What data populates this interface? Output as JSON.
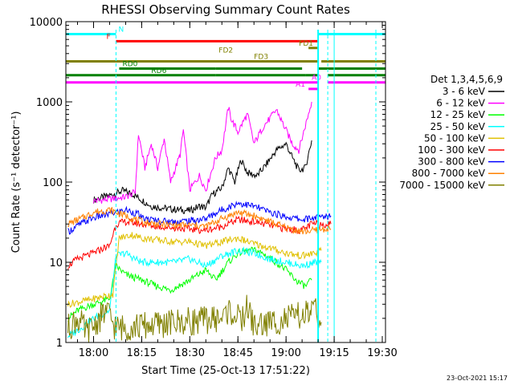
{
  "chart_data": {
    "type": "line",
    "title": "RHESSI Observing Summary Count Rates",
    "xlabel": "Start Time (25-Oct-13 17:51:22)",
    "ylabel": "Count Rate (s⁻¹ detector⁻¹)",
    "y_scale": "log",
    "ylim": [
      1,
      10000
    ],
    "xlim": [
      "17:51:22",
      "19:31:00"
    ],
    "x_ticks": [
      "18:00",
      "18:15",
      "18:30",
      "18:45",
      "19:00",
      "19:15",
      "19:30"
    ],
    "y_ticks": [
      "1",
      "10",
      "100",
      "1000",
      "10000"
    ],
    "legend_title": "Det 1,3,4,5,6,9",
    "legend_position": "right",
    "footer_date": "23-Oct-2021 15:17",
    "series": [
      {
        "name": "3 - 6 keV",
        "color": "#000000",
        "points": [
          [
            "18:00",
            60
          ],
          [
            "18:06",
            70
          ],
          [
            "18:09",
            78
          ],
          [
            "18:12",
            72
          ],
          [
            "18:15",
            60
          ],
          [
            "18:18",
            50
          ],
          [
            "18:21",
            48
          ],
          [
            "18:24",
            46
          ],
          [
            "18:27",
            45
          ],
          [
            "18:30",
            44
          ],
          [
            "18:33",
            50
          ],
          [
            "18:35",
            48
          ],
          [
            "18:37",
            70
          ],
          [
            "18:40",
            85
          ],
          [
            "18:42",
            150
          ],
          [
            "18:44",
            100
          ],
          [
            "18:46",
            190
          ],
          [
            "18:48",
            130
          ],
          [
            "18:51",
            120
          ],
          [
            "18:54",
            170
          ],
          [
            "18:57",
            250
          ],
          [
            "19:00",
            300
          ],
          [
            "19:02",
            200
          ],
          [
            "19:04",
            140
          ],
          [
            "19:06",
            150
          ],
          [
            "19:08",
            330
          ]
        ]
      },
      {
        "name": "6 - 12 keV",
        "color": "#ff00ff",
        "points": [
          [
            "18:00",
            58
          ],
          [
            "18:06",
            62
          ],
          [
            "18:10",
            65
          ],
          [
            "18:13",
            75
          ],
          [
            "18:14",
            400
          ],
          [
            "18:16",
            150
          ],
          [
            "18:18",
            300
          ],
          [
            "18:20",
            150
          ],
          [
            "18:22",
            350
          ],
          [
            "18:24",
            100
          ],
          [
            "18:27",
            220
          ],
          [
            "18:28",
            450
          ],
          [
            "18:30",
            80
          ],
          [
            "18:33",
            120
          ],
          [
            "18:35",
            80
          ],
          [
            "18:38",
            200
          ],
          [
            "18:40",
            250
          ],
          [
            "18:42",
            850
          ],
          [
            "18:43",
            600
          ],
          [
            "18:45",
            420
          ],
          [
            "18:47",
            600
          ],
          [
            "18:48",
            700
          ],
          [
            "18:50",
            300
          ],
          [
            "18:53",
            500
          ],
          [
            "18:55",
            620
          ],
          [
            "18:57",
            800
          ],
          [
            "19:00",
            440
          ],
          [
            "19:02",
            300
          ],
          [
            "19:04",
            250
          ],
          [
            "19:06",
            500
          ],
          [
            "19:08",
            1000
          ]
        ]
      },
      {
        "name": "12 - 25 keV",
        "color": "#00ff00",
        "points": [
          [
            "17:52",
            2
          ],
          [
            "17:55",
            2.5
          ],
          [
            "18:00",
            3
          ],
          [
            "18:05",
            3.5
          ],
          [
            "18:07",
            9
          ],
          [
            "18:10",
            7
          ],
          [
            "18:15",
            6
          ],
          [
            "18:20",
            5
          ],
          [
            "18:24",
            4.5
          ],
          [
            "18:30",
            6
          ],
          [
            "18:35",
            8
          ],
          [
            "18:38",
            6
          ],
          [
            "18:42",
            10
          ],
          [
            "18:45",
            13
          ],
          [
            "18:48",
            14
          ],
          [
            "18:51",
            14
          ],
          [
            "18:54",
            12
          ],
          [
            "18:57",
            10
          ],
          [
            "19:00",
            8
          ],
          [
            "19:03",
            6
          ],
          [
            "19:06",
            5
          ],
          [
            "19:08",
            6
          ]
        ]
      },
      {
        "name": "25 - 50 keV",
        "color": "#00ffff",
        "points": [
          [
            "17:52",
            1.2
          ],
          [
            "17:56",
            1.5
          ],
          [
            "18:00",
            2
          ],
          [
            "18:05",
            2.5
          ],
          [
            "18:07",
            12
          ],
          [
            "18:10",
            13
          ],
          [
            "18:13",
            11
          ],
          [
            "18:15",
            10
          ],
          [
            "18:20",
            10
          ],
          [
            "18:25",
            10
          ],
          [
            "18:30",
            11
          ],
          [
            "18:35",
            9
          ],
          [
            "18:40",
            12
          ],
          [
            "18:45",
            14
          ],
          [
            "18:50",
            13
          ],
          [
            "18:55",
            11
          ],
          [
            "19:00",
            10
          ],
          [
            "19:05",
            9
          ],
          [
            "19:09",
            10
          ],
          [
            "19:11",
            10
          ]
        ]
      },
      {
        "name": "50 - 100 keV",
        "color": "#e0c000",
        "points": [
          [
            "17:52",
            3
          ],
          [
            "18:00",
            3.5
          ],
          [
            "18:06",
            4
          ],
          [
            "18:08",
            20
          ],
          [
            "18:12",
            22
          ],
          [
            "18:15",
            20
          ],
          [
            "18:20",
            19
          ],
          [
            "18:25",
            18
          ],
          [
            "18:30",
            18
          ],
          [
            "18:35",
            16
          ],
          [
            "18:40",
            18
          ],
          [
            "18:45",
            20
          ],
          [
            "18:50",
            17
          ],
          [
            "18:55",
            15
          ],
          [
            "19:00",
            13
          ],
          [
            "19:05",
            12
          ],
          [
            "19:09",
            13
          ],
          [
            "19:11",
            14
          ]
        ]
      },
      {
        "name": "100 - 300 keV",
        "color": "#ff0000",
        "points": [
          [
            "17:52",
            9
          ],
          [
            "17:55",
            11
          ],
          [
            "18:00",
            13
          ],
          [
            "18:03",
            15
          ],
          [
            "18:05",
            16
          ],
          [
            "18:07",
            30
          ],
          [
            "18:10",
            32
          ],
          [
            "18:15",
            30
          ],
          [
            "18:20",
            28
          ],
          [
            "18:25",
            27
          ],
          [
            "18:30",
            26
          ],
          [
            "18:35",
            25
          ],
          [
            "18:40",
            28
          ],
          [
            "18:45",
            34
          ],
          [
            "18:50",
            32
          ],
          [
            "18:55",
            29
          ],
          [
            "19:00",
            26
          ],
          [
            "19:05",
            25
          ],
          [
            "19:08",
            30
          ],
          [
            "19:10",
            30
          ],
          [
            "19:12",
            30
          ],
          [
            "19:14",
            30
          ]
        ]
      },
      {
        "name": "300 - 800 keV",
        "color": "#0000ff",
        "points": [
          [
            "17:52",
            24
          ],
          [
            "17:56",
            30
          ],
          [
            "18:00",
            36
          ],
          [
            "18:05",
            40
          ],
          [
            "18:10",
            45
          ],
          [
            "18:14",
            40
          ],
          [
            "18:15",
            35
          ],
          [
            "18:20",
            33
          ],
          [
            "18:25",
            32
          ],
          [
            "18:30",
            33
          ],
          [
            "18:35",
            35
          ],
          [
            "18:40",
            45
          ],
          [
            "18:45",
            55
          ],
          [
            "18:50",
            50
          ],
          [
            "18:55",
            42
          ],
          [
            "19:00",
            37
          ],
          [
            "19:05",
            34
          ],
          [
            "19:09",
            36
          ],
          [
            "19:12",
            37
          ],
          [
            "19:14",
            38
          ]
        ]
      },
      {
        "name": "800 - 7000 keV",
        "color": "#ff8000",
        "points": [
          [
            "17:52",
            30
          ],
          [
            "17:56",
            35
          ],
          [
            "18:00",
            42
          ],
          [
            "18:05",
            45
          ],
          [
            "18:10",
            38
          ],
          [
            "18:15",
            32
          ],
          [
            "18:20",
            30
          ],
          [
            "18:25",
            29
          ],
          [
            "18:30",
            29
          ],
          [
            "18:35",
            28
          ],
          [
            "18:40",
            35
          ],
          [
            "18:45",
            42
          ],
          [
            "18:50",
            38
          ],
          [
            "18:55",
            32
          ],
          [
            "19:00",
            27
          ],
          [
            "19:05",
            24
          ],
          [
            "19:09",
            25
          ],
          [
            "19:12",
            26
          ],
          [
            "19:14",
            26
          ]
        ]
      },
      {
        "name": "7000 - 15000 keV",
        "color": "#808000",
        "points": [
          [
            "17:52",
            1.5
          ],
          [
            "17:55",
            2
          ],
          [
            "17:58",
            1.3
          ],
          [
            "18:01",
            1.8
          ],
          [
            "18:04",
            2.5
          ],
          [
            "18:07",
            1.5
          ],
          [
            "18:40",
            2
          ],
          [
            "18:42",
            2.5
          ],
          [
            "18:44",
            2.2
          ],
          [
            "18:46",
            1.8
          ],
          [
            "18:48",
            2.8
          ],
          [
            "18:50",
            1.6
          ],
          [
            "19:06",
            2.2
          ],
          [
            "19:09",
            2.5
          ],
          [
            "19:11",
            1.8
          ]
        ]
      }
    ],
    "flag_bars": [
      {
        "label": "N",
        "color": "#00ffff",
        "y": 7000,
        "segments": [
          [
            "17:51:22",
            "18:07"
          ],
          [
            "19:10",
            "19:31"
          ]
        ]
      },
      {
        "label": "F",
        "color": "#ff0000",
        "y": 5700,
        "segments": [
          [
            "18:07",
            "19:10"
          ]
        ]
      },
      {
        "label": "FD1",
        "color": "#808000",
        "y": 4700,
        "segments": [
          [
            "19:07",
            "19:10"
          ]
        ]
      },
      {
        "label": "FD2",
        "color": "#808000",
        "y": 3850,
        "segments": []
      },
      {
        "label": "FD3",
        "color": "#808000",
        "y": 3200,
        "segments": [
          [
            "17:51:22",
            "19:10"
          ],
          [
            "19:11",
            "19:31"
          ]
        ]
      },
      {
        "label": "RD0",
        "color": "#008000",
        "y": 2600,
        "segments": [
          [
            "18:08",
            "18:38"
          ],
          [
            "18:38",
            "19:05"
          ],
          [
            "19:10",
            "19:31"
          ]
        ]
      },
      {
        "label": "RD6",
        "color": "#008000",
        "y": 2150,
        "segments": [
          [
            "17:51:22",
            "18:38"
          ],
          [
            "18:38",
            "19:06"
          ],
          [
            "19:06",
            "19:10"
          ],
          [
            "19:13",
            "19:31"
          ]
        ]
      },
      {
        "label": "A0",
        "color": "#ff00ff",
        "y": 1750,
        "segments": [
          [
            "17:51:22",
            "19:10"
          ],
          [
            "19:13",
            "19:31"
          ]
        ]
      },
      {
        "label": "A1",
        "color": "#ff00ff",
        "y": 1450,
        "segments": [
          [
            "19:07",
            "19:10"
          ]
        ]
      }
    ],
    "night_markers": [
      "18:07",
      "19:13"
    ],
    "saa_markers": [
      "19:10",
      "19:15",
      "19:28"
    ]
  }
}
